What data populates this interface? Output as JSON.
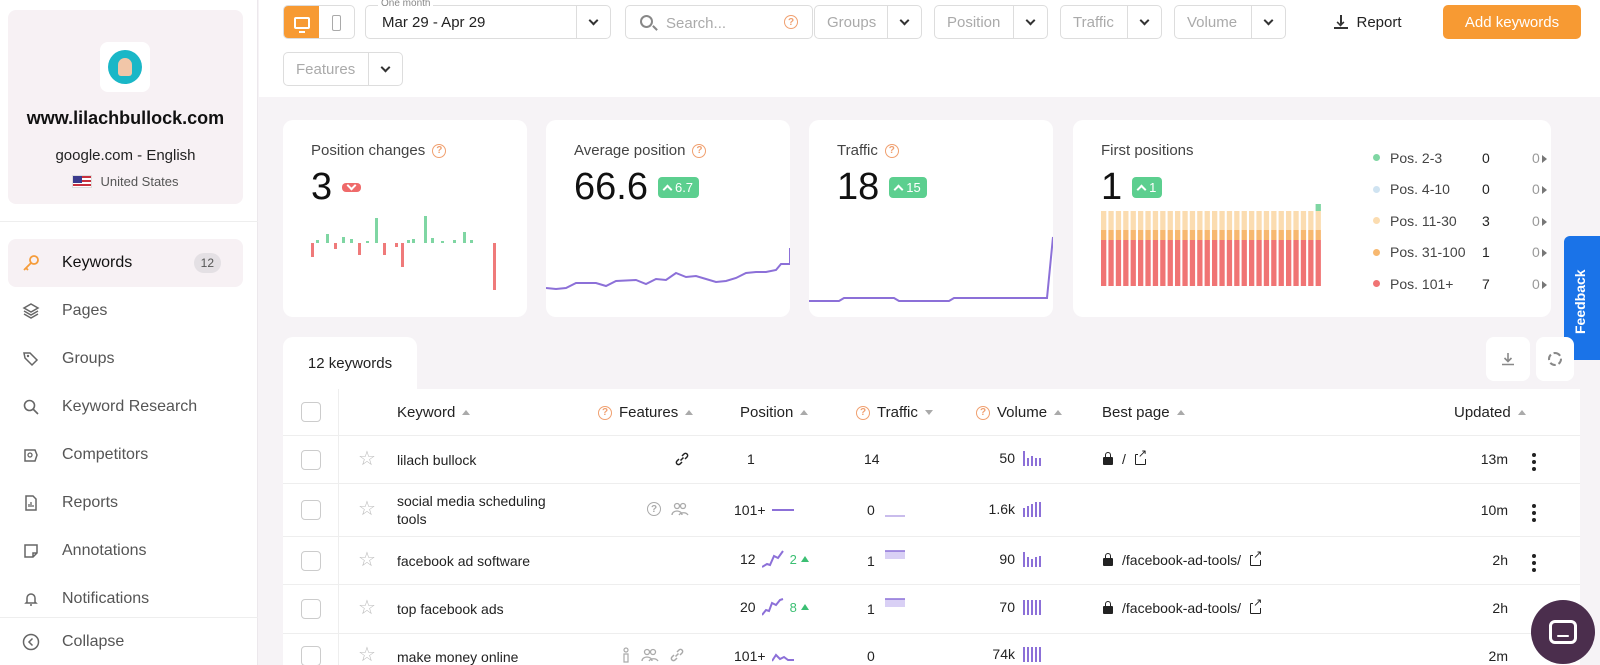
{
  "site": {
    "domain": "www.lilachbullock.com",
    "engine": "google.com - English",
    "country": "United States"
  },
  "nav": {
    "items": [
      {
        "label": "Keywords",
        "icon": "key-icon",
        "badge": "12",
        "active": true
      },
      {
        "label": "Pages",
        "icon": "layers-icon"
      },
      {
        "label": "Groups",
        "icon": "tags-icon"
      },
      {
        "label": "Keyword Research",
        "icon": "search-icon"
      },
      {
        "label": "Competitors",
        "icon": "competitors-icon"
      },
      {
        "label": "Reports",
        "icon": "report-file-icon"
      },
      {
        "label": "Annotations",
        "icon": "note-icon"
      },
      {
        "label": "Notifications",
        "icon": "bell-icon"
      }
    ],
    "collapse": "Collapse"
  },
  "toolbar": {
    "date_legend": "One month",
    "date_range": "Mar 29 - Apr 29",
    "search_placeholder": "Search...",
    "filters": [
      "Groups",
      "Position",
      "Traffic",
      "Volume",
      "Features"
    ],
    "report_label": "Report",
    "add_label": "Add keywords"
  },
  "cards": {
    "position_changes": {
      "title": "Position changes",
      "value": "3",
      "direction": "down"
    },
    "average_position": {
      "title": "Average position",
      "value": "66.6",
      "delta": "6.7"
    },
    "traffic": {
      "title": "Traffic",
      "value": "18",
      "delta": "15"
    },
    "first_positions": {
      "title": "First positions",
      "value": "1",
      "delta": "1",
      "legend": [
        {
          "label": "Pos. 2-3",
          "count": "0",
          "change": "0",
          "color": "#7fd6a3"
        },
        {
          "label": "Pos. 4-10",
          "count": "0",
          "change": "0",
          "color": "#cfe3f1"
        },
        {
          "label": "Pos. 11-30",
          "count": "3",
          "change": "0",
          "color": "#fbdcb0"
        },
        {
          "label": "Pos. 31-100",
          "count": "1",
          "change": "0",
          "color": "#f7b870"
        },
        {
          "label": "Pos. 101+",
          "count": "7",
          "change": "0",
          "color": "#f07474"
        }
      ]
    }
  },
  "feedback": "Feedback",
  "table": {
    "tab_label": "12 keywords",
    "headers": {
      "keyword": "Keyword",
      "features": "Features",
      "position": "Position",
      "traffic": "Traffic",
      "volume": "Volume",
      "best_page": "Best page",
      "updated": "Updated"
    },
    "rows": [
      {
        "keyword": "lilach bullock",
        "position": "1",
        "gain": "",
        "traffic": "14",
        "volume": "50",
        "best_page": "/",
        "updated": "13m"
      },
      {
        "keyword": "social media scheduling tools",
        "position": "101+",
        "gain": "",
        "traffic": "0",
        "volume": "1.6k",
        "best_page": "",
        "updated": "10m"
      },
      {
        "keyword": "facebook ad software",
        "position": "12",
        "gain": "2",
        "traffic": "1",
        "volume": "90",
        "best_page": "/facebook-ad-tools/",
        "updated": "2h"
      },
      {
        "keyword": "top facebook ads",
        "position": "20",
        "gain": "8",
        "traffic": "1",
        "volume": "70",
        "best_page": "/facebook-ad-tools/",
        "updated": "2h"
      },
      {
        "keyword": "make money online",
        "position": "101+",
        "gain": "",
        "traffic": "0",
        "volume": "74k",
        "best_page": "",
        "updated": "2m"
      }
    ]
  }
}
